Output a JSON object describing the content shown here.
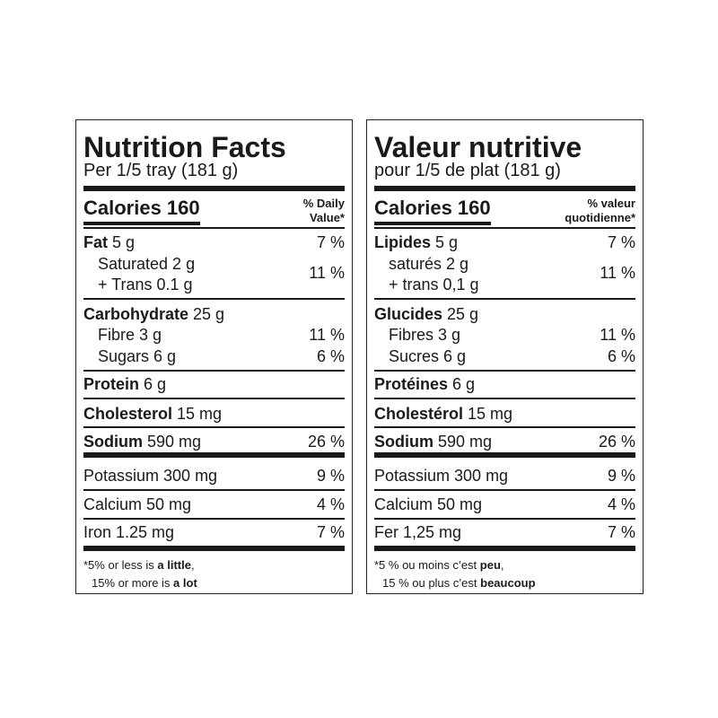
{
  "panels": [
    {
      "title": "Nutrition Facts",
      "serving": "Per 1/5 tray (181 g)",
      "calories": "Calories 160",
      "dv_header": [
        "% Daily",
        "Value*"
      ],
      "rows": [
        {
          "name": "Fat",
          "amount": "5 g",
          "dv": "7 %"
        },
        {
          "lines": [
            "Saturated 2 g",
            "+ Trans 0.1 g"
          ],
          "dv": "11 %"
        },
        {
          "name": "Carbohydrate",
          "amount": "25 g"
        },
        {
          "text": "Fibre 3 g",
          "dv": "11 %"
        },
        {
          "text": "Sugars 6 g",
          "dv": "6 %"
        },
        {
          "name": "Protein",
          "amount": "6 g"
        },
        {
          "name": "Cholesterol",
          "amount": "15 mg"
        },
        {
          "name": "Sodium",
          "amount": "590 mg",
          "dv": "26 %"
        },
        {
          "text": "Potassium 300 mg",
          "dv": "9 %"
        },
        {
          "text": "Calcium 50 mg",
          "dv": "4 %"
        },
        {
          "text": "Iron 1.25 mg",
          "dv": "7 %"
        }
      ],
      "footnote": [
        [
          "*5% or less is ",
          "a little",
          ","
        ],
        [
          "15% or more is ",
          "a lot"
        ]
      ]
    },
    {
      "title": "Valeur nutritive",
      "serving": "pour 1/5 de plat (181 g)",
      "calories": "Calories 160",
      "dv_header": [
        "% valeur",
        "quotidienne*"
      ],
      "rows": [
        {
          "name": "Lipides",
          "amount": "5 g",
          "dv": "7 %"
        },
        {
          "lines": [
            "saturés 2 g",
            "+ trans 0,1 g"
          ],
          "dv": "11 %"
        },
        {
          "name": "Glucides",
          "amount": "25 g"
        },
        {
          "text": "Fibres 3 g",
          "dv": "11 %"
        },
        {
          "text": "Sucres 6 g",
          "dv": "6 %"
        },
        {
          "name": "Protéines",
          "amount": "6 g"
        },
        {
          "name": "Cholestérol",
          "amount": "15 mg"
        },
        {
          "name": "Sodium",
          "amount": "590 mg",
          "dv": "26 %"
        },
        {
          "text": "Potassium 300 mg",
          "dv": "9 %"
        },
        {
          "text": "Calcium 50 mg",
          "dv": "4 %"
        },
        {
          "text": "Fer 1,25 mg",
          "dv": "7 %"
        }
      ],
      "footnote": [
        [
          "*5 % ou moins c’est ",
          "peu",
          ","
        ],
        [
          "15 % ou plus c’est ",
          "beaucoup"
        ]
      ]
    }
  ]
}
